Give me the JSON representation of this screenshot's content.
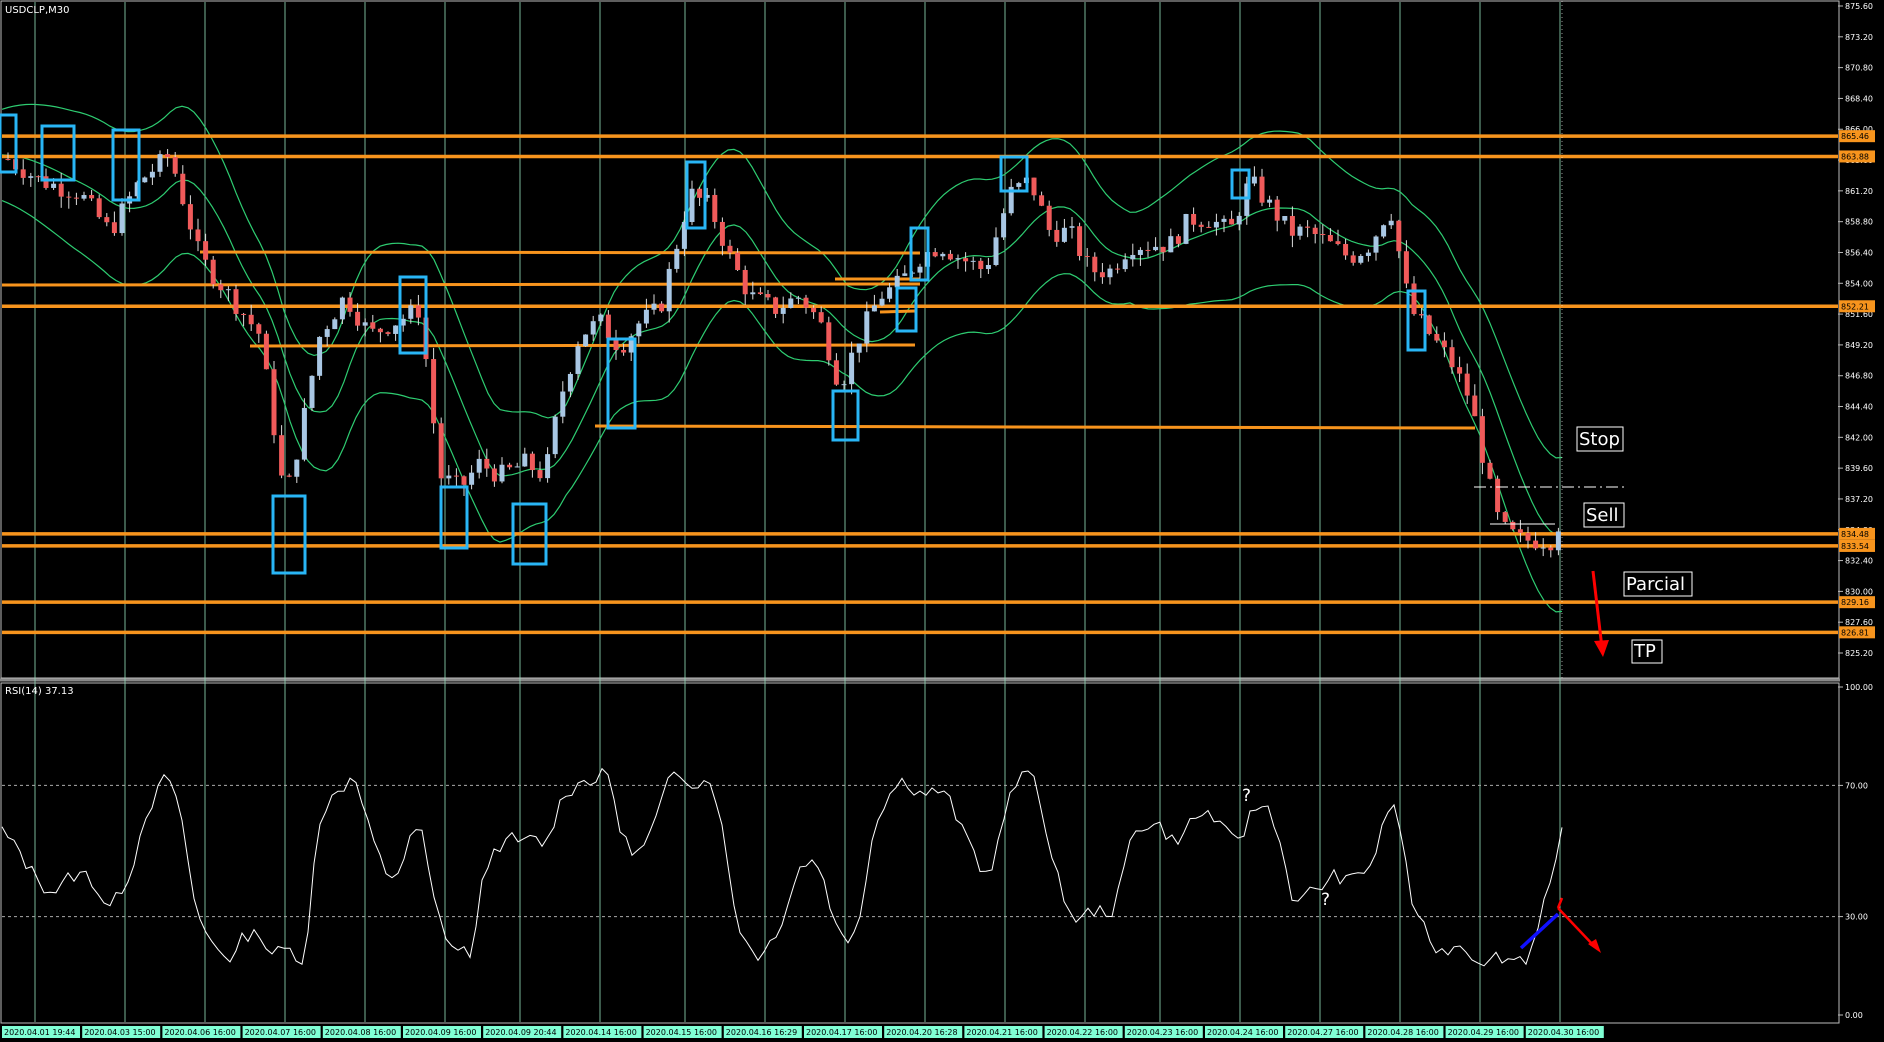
{
  "window": {
    "symbol_label": "USDCLP,M30",
    "rsi_label": "RSI(14) 37.13"
  },
  "price_axis": {
    "ticks": [
      "875.60",
      "873.20",
      "870.80",
      "868.40",
      "866.00",
      "863.60",
      "861.20",
      "858.80",
      "856.40",
      "854.00",
      "851.60",
      "849.20",
      "846.80",
      "844.40",
      "842.00",
      "839.60",
      "837.20",
      "834.80",
      "832.40",
      "830.00",
      "827.60",
      "825.20"
    ],
    "badges": [
      {
        "text": "865.46",
        "color": "#f7941d"
      },
      {
        "text": "863.88",
        "color": "#f7941d"
      },
      {
        "text": "852.21",
        "color": "#f7941d"
      },
      {
        "text": "834.48",
        "color": "#f7941d"
      },
      {
        "text": "833.54",
        "color": "#f7941d"
      },
      {
        "text": "829.16",
        "color": "#f7941d"
      },
      {
        "text": "826.81",
        "color": "#f7941d"
      }
    ]
  },
  "rsi_axis": {
    "ticks": [
      "100.00",
      "70.00",
      "30.00",
      "0.00"
    ]
  },
  "time_axis": {
    "labels": [
      "2020.04.01 19:44",
      "2020.04.03 15:00",
      "2020.04.06 16:00",
      "2020.04.07 16:00",
      "2020.04.08 16:00",
      "2020.04.09 16:00",
      "2020.04.09 20:44",
      "2020.04.14 16:00",
      "2020.04.15 16:00",
      "2020.04.16 16:29",
      "2020.04.17 16:00",
      "2020.04.20 16:28",
      "2020.04.21 16:00",
      "2020.04.22 16:00",
      "2020.04.23 16:00",
      "2020.04.24 16:00",
      "2020.04.27 16:00",
      "2020.04.28 16:00",
      "2020.04.29 16:00",
      "2020.04.30 16:00"
    ]
  },
  "annotations": {
    "stop": "Stop",
    "sell": "Sell",
    "parcial": "Parcial",
    "tp": "TP",
    "question_1": "?",
    "question_2": "?"
  },
  "colors": {
    "background": "#000000",
    "grid": "#8fd6b4",
    "level_line": "#f7941d",
    "bull_candle": "#a9c7e4",
    "bear_candle": "#f05a5a",
    "bollinger": "#2ecc71",
    "highlight_box": "#29b6f6",
    "rsi_line": "#ffffff",
    "time_label_bg": "#80ffd5",
    "arrow_red": "#ff0000",
    "arrow_blue": "#1010ff"
  }
}
